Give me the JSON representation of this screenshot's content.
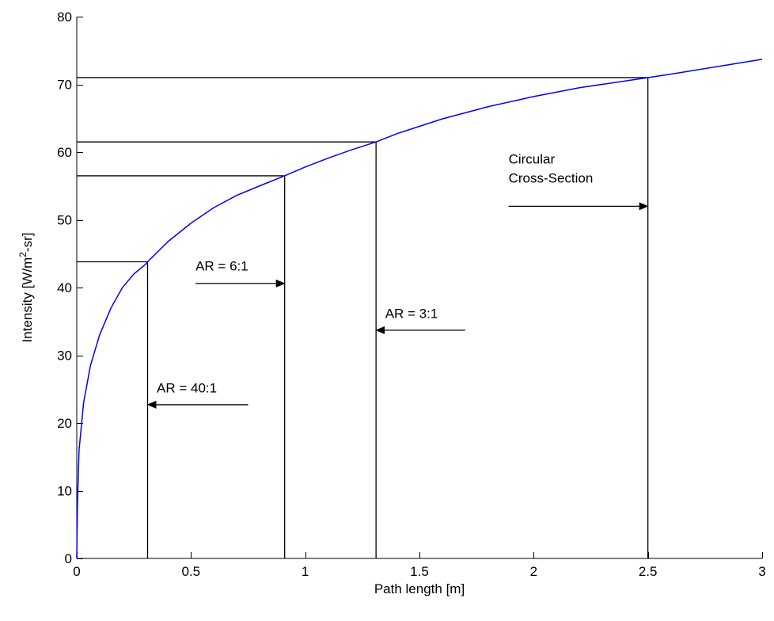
{
  "chart_data": {
    "type": "line",
    "xlabel": "Path length [m]",
    "ylabel_main": "Intensity [W/m",
    "ylabel_sup": "2",
    "ylabel_tail": "-sr]",
    "xlim": [
      0,
      3
    ],
    "ylim": [
      0,
      80
    ],
    "xticks": [
      0,
      0.5,
      1,
      1.5,
      2,
      2.5,
      3
    ],
    "xtick_labels": [
      "0",
      "0.5",
      "1",
      "1.5",
      "2",
      "2.5",
      "3"
    ],
    "yticks": [
      0,
      10,
      20,
      30,
      40,
      50,
      60,
      70,
      80
    ],
    "ytick_labels": [
      "0",
      "10",
      "20",
      "30",
      "40",
      "50",
      "60",
      "70",
      "80"
    ],
    "grid": false,
    "series": [
      {
        "color": "#0000ff",
        "x": [
          0,
          0.003,
          0.01,
          0.03,
          0.06,
          0.1,
          0.15,
          0.2,
          0.25,
          0.3,
          0.31,
          0.4,
          0.5,
          0.6,
          0.7,
          0.8,
          0.91,
          1.0,
          1.1,
          1.2,
          1.31,
          1.4,
          1.5,
          1.6,
          1.8,
          2.0,
          2.2,
          2.4,
          2.5,
          2.6,
          2.8,
          3.0
        ],
        "y": [
          0,
          8,
          16,
          23,
          28.5,
          33,
          37,
          40,
          42,
          43.4,
          43.8,
          46.8,
          49.5,
          51.8,
          53.6,
          55.0,
          56.5,
          57.8,
          59.1,
          60.3,
          61.5,
          62.7,
          63.8,
          64.9,
          66.7,
          68.2,
          69.5,
          70.5,
          71.0,
          71.5,
          72.6,
          73.7
        ]
      }
    ],
    "reference_lines": [
      {
        "x": 0.31,
        "y": 43.8
      },
      {
        "x": 0.91,
        "y": 56.5
      },
      {
        "x": 1.31,
        "y": 61.5
      },
      {
        "x": 2.5,
        "y": 71.0
      }
    ],
    "annotations": [
      {
        "lines": [
          "AR = 40:1"
        ],
        "text_x": 0.35,
        "text_y": 24.5,
        "arrow_from": [
          0.75,
          22.7
        ],
        "arrow_to": [
          0.31,
          22.7
        ]
      },
      {
        "lines": [
          "AR = 6:1"
        ],
        "text_x": 0.52,
        "text_y": 42.5,
        "arrow_from": [
          0.52,
          40.6
        ],
        "arrow_to": [
          0.91,
          40.6
        ]
      },
      {
        "lines": [
          "AR = 3:1"
        ],
        "text_x": 1.35,
        "text_y": 35.5,
        "arrow_from": [
          1.7,
          33.7
        ],
        "arrow_to": [
          1.31,
          33.7
        ]
      },
      {
        "lines": [
          "Circular",
          "Cross-Section"
        ],
        "text_x": 1.89,
        "text_y": 55.5,
        "arrow_from": [
          1.89,
          52.0
        ],
        "arrow_to": [
          2.5,
          52.0
        ]
      }
    ]
  }
}
